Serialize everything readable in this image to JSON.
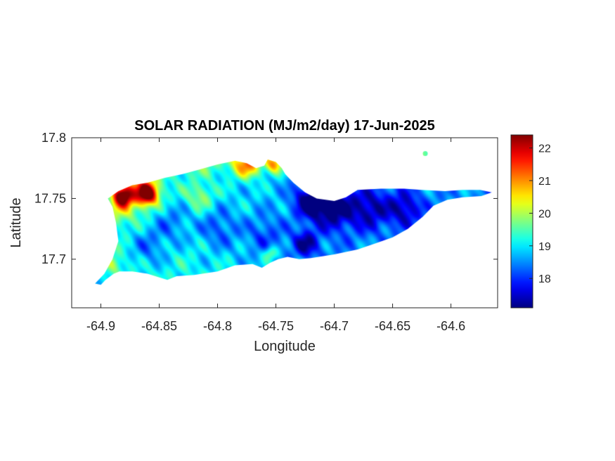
{
  "chart_data": {
    "type": "heatmap",
    "title": "SOLAR RADIATION (MJ/m2/day) 17-Jun-2025",
    "xlabel": "Longitude",
    "ylabel": "Latitude",
    "xlim": [
      -64.925,
      -64.56
    ],
    "ylim": [
      17.66,
      17.8
    ],
    "xticks": [
      -64.9,
      -64.85,
      -64.8,
      -64.75,
      -64.7,
      -64.65,
      -64.6
    ],
    "xtick_labels": [
      "-64.9",
      "-64.85",
      "-64.8",
      "-64.75",
      "-64.7",
      "-64.65",
      "-64.6"
    ],
    "yticks": [
      17.7,
      17.75,
      17.8
    ],
    "ytick_labels": [
      "17.7",
      "17.75",
      "17.8"
    ],
    "colorbar": {
      "colormap": "jet",
      "clim": [
        17.1,
        22.4
      ],
      "ticks": [
        18,
        19,
        20,
        21,
        22
      ],
      "tick_labels": [
        "18",
        "19",
        "20",
        "21",
        "22"
      ]
    },
    "grid": false,
    "island_outline": [
      [
        -64.9,
        17.679
      ],
      [
        -64.896,
        17.683
      ],
      [
        -64.889,
        17.688
      ],
      [
        -64.884,
        17.69
      ],
      [
        -64.873,
        17.69
      ],
      [
        -64.86,
        17.688
      ],
      [
        -64.85,
        17.685
      ],
      [
        -64.843,
        17.683
      ],
      [
        -64.835,
        17.686
      ],
      [
        -64.82,
        17.687
      ],
      [
        -64.8,
        17.69
      ],
      [
        -64.785,
        17.695
      ],
      [
        -64.77,
        17.696
      ],
      [
        -64.762,
        17.693
      ],
      [
        -64.755,
        17.697
      ],
      [
        -64.748,
        17.7
      ],
      [
        -64.74,
        17.702
      ],
      [
        -64.73,
        17.7
      ],
      [
        -64.72,
        17.701
      ],
      [
        -64.7,
        17.704
      ],
      [
        -64.68,
        17.708
      ],
      [
        -64.665,
        17.713
      ],
      [
        -64.65,
        17.718
      ],
      [
        -64.637,
        17.725
      ],
      [
        -64.624,
        17.735
      ],
      [
        -64.615,
        17.744
      ],
      [
        -64.603,
        17.749
      ],
      [
        -64.59,
        17.751
      ],
      [
        -64.574,
        17.752
      ],
      [
        -64.565,
        17.755
      ],
      [
        -64.575,
        17.757
      ],
      [
        -64.59,
        17.757
      ],
      [
        -64.605,
        17.756
      ],
      [
        -64.625,
        17.757
      ],
      [
        -64.64,
        17.758
      ],
      [
        -64.66,
        17.758
      ],
      [
        -64.68,
        17.757
      ],
      [
        -64.69,
        17.751
      ],
      [
        -64.7,
        17.748
      ],
      [
        -64.715,
        17.75
      ],
      [
        -64.725,
        17.755
      ],
      [
        -64.735,
        17.763
      ],
      [
        -64.742,
        17.77
      ],
      [
        -64.745,
        17.775
      ],
      [
        -64.75,
        17.78
      ],
      [
        -64.757,
        17.782
      ],
      [
        -64.76,
        17.777
      ],
      [
        -64.767,
        17.775
      ],
      [
        -64.775,
        17.779
      ],
      [
        -64.785,
        17.781
      ],
      [
        -64.8,
        17.778
      ],
      [
        -64.815,
        17.774
      ],
      [
        -64.83,
        17.77
      ],
      [
        -64.845,
        17.767
      ],
      [
        -64.86,
        17.763
      ],
      [
        -64.873,
        17.761
      ],
      [
        -64.885,
        17.756
      ],
      [
        -64.894,
        17.75
      ],
      [
        -64.89,
        17.743
      ],
      [
        -64.887,
        17.73
      ],
      [
        -64.885,
        17.715
      ],
      [
        -64.89,
        17.7
      ],
      [
        -64.897,
        17.688
      ],
      [
        -64.905,
        17.68
      ]
    ],
    "cay": [
      -64.622,
      17.787
    ],
    "hotspots": [
      {
        "lon": -64.882,
        "lat": 17.752,
        "value": 22.4,
        "spread": 0.006
      },
      {
        "lon": -64.86,
        "lat": 17.754,
        "value": 22.0,
        "spread": 0.006
      },
      {
        "lon": -64.868,
        "lat": 17.758,
        "value": 20.8,
        "spread": 0.012
      },
      {
        "lon": -64.775,
        "lat": 17.778,
        "value": 20.9,
        "spread": 0.008
      },
      {
        "lon": -64.752,
        "lat": 17.778,
        "value": 20.8,
        "spread": 0.005
      },
      {
        "lon": -64.72,
        "lat": 17.748,
        "value": 17.3,
        "spread": 0.01
      },
      {
        "lon": -64.7,
        "lat": 17.742,
        "value": 17.6,
        "spread": 0.012
      },
      {
        "lon": -64.67,
        "lat": 17.742,
        "value": 17.9,
        "spread": 0.012
      },
      {
        "lon": -64.64,
        "lat": 17.742,
        "value": 17.9,
        "spread": 0.01
      },
      {
        "lon": -64.84,
        "lat": 17.73,
        "value": 18.4,
        "spread": 0.012
      },
      {
        "lon": -64.8,
        "lat": 17.726,
        "value": 18.3,
        "spread": 0.012
      },
      {
        "lon": -64.76,
        "lat": 17.72,
        "value": 18.4,
        "spread": 0.012
      },
      {
        "lon": -64.725,
        "lat": 17.713,
        "value": 17.7,
        "spread": 0.008
      },
      {
        "lon": -64.86,
        "lat": 17.71,
        "value": 18.4,
        "spread": 0.01
      },
      {
        "lon": -64.885,
        "lat": 17.738,
        "value": 19.8,
        "spread": 0.008
      },
      {
        "lon": -64.89,
        "lat": 17.697,
        "value": 20.0,
        "spread": 0.006
      },
      {
        "lon": -64.815,
        "lat": 17.752,
        "value": 19.9,
        "spread": 0.008
      },
      {
        "lon": -64.755,
        "lat": 17.705,
        "value": 20.3,
        "spread": 0.004
      }
    ]
  }
}
